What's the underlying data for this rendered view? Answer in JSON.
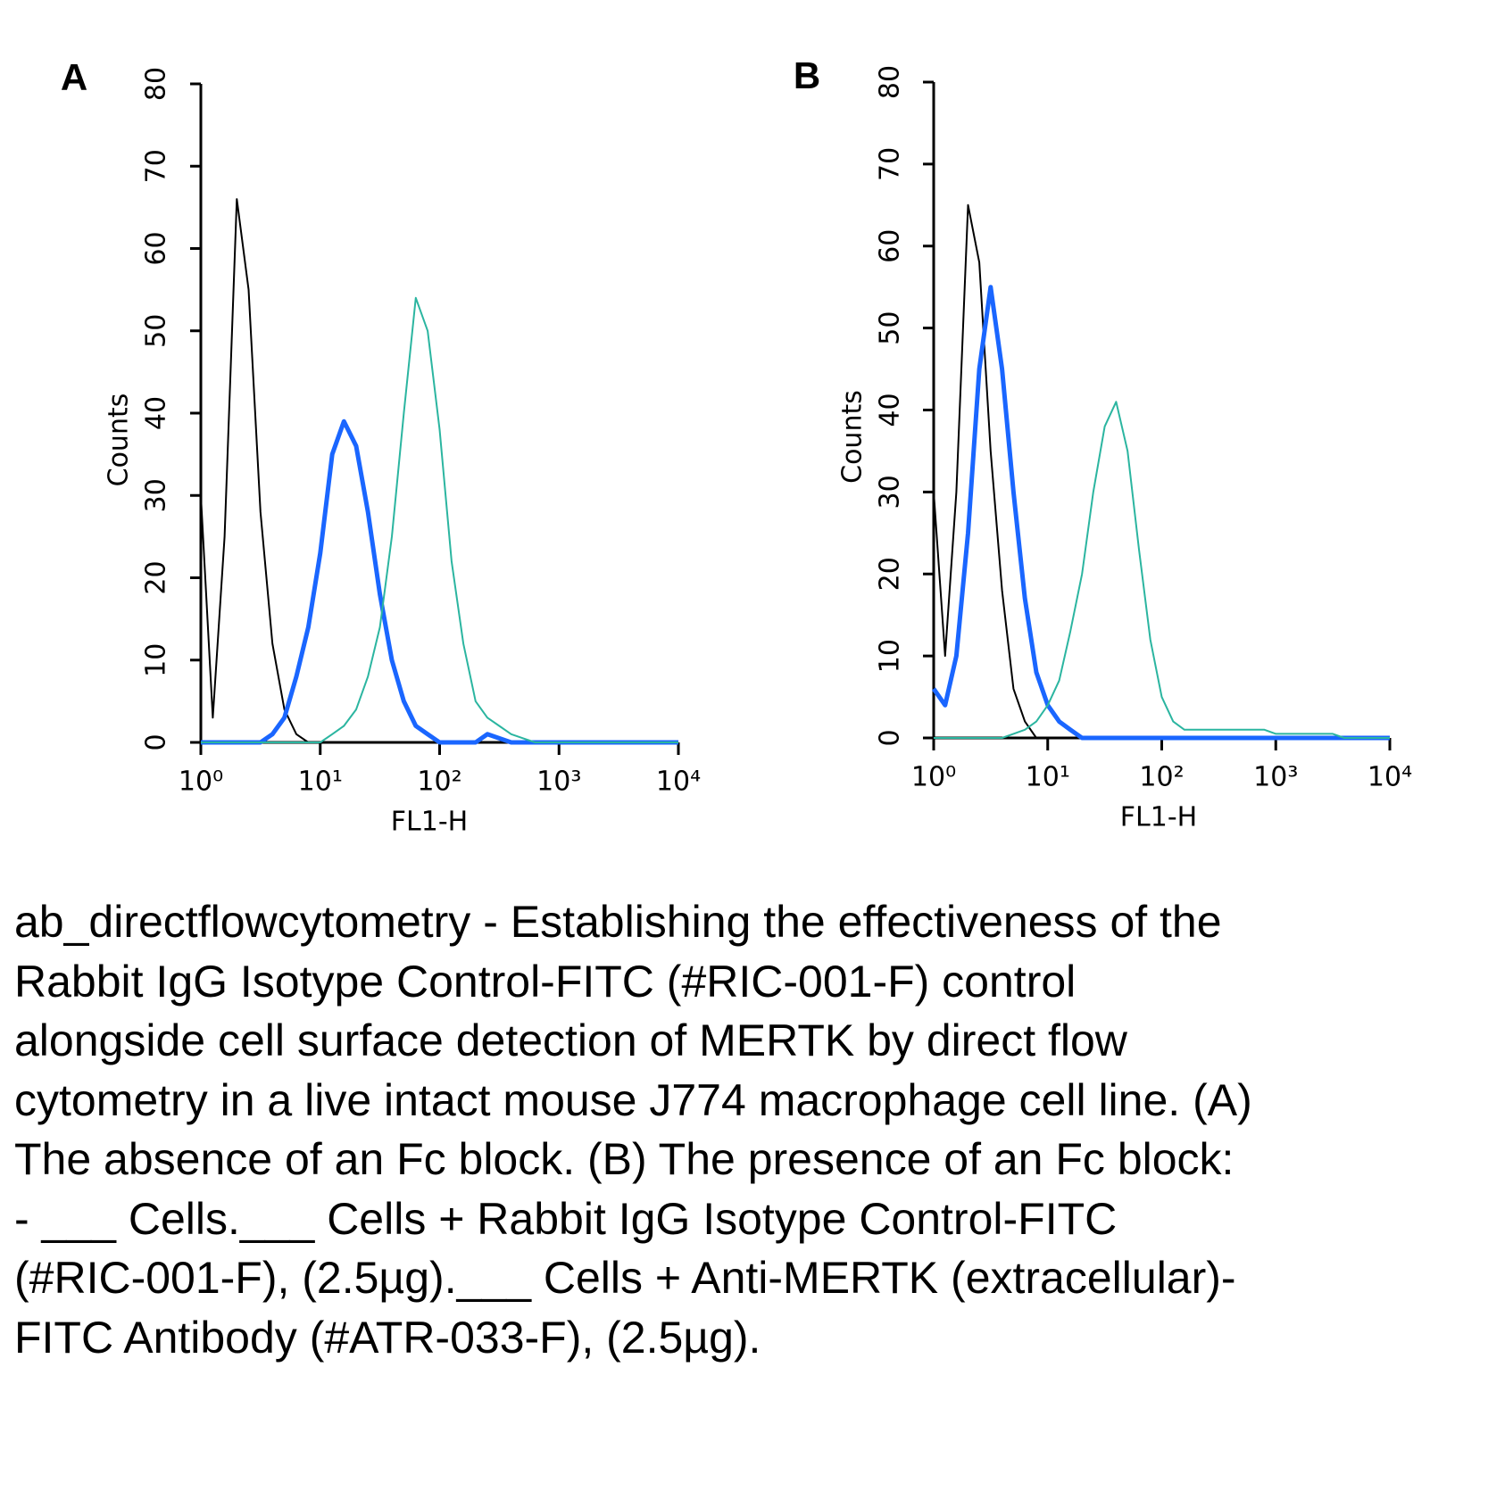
{
  "chart_data": [
    {
      "type": "line",
      "label": "A",
      "xlabel": "FL1-H",
      "ylabel": "Counts",
      "xscale": "log",
      "xlim": [
        1,
        10000
      ],
      "ylim": [
        0,
        80
      ],
      "xticks": [
        {
          "value": 1,
          "label": "10⁰"
        },
        {
          "value": 10,
          "label": "10¹"
        },
        {
          "value": 100,
          "label": "10²"
        },
        {
          "value": 1000,
          "label": "10³"
        },
        {
          "value": 10000,
          "label": "10⁴"
        }
      ],
      "yticks": [
        0,
        10,
        20,
        30,
        40,
        50,
        60,
        70,
        80
      ],
      "x": [
        1,
        1.26,
        1.58,
        2,
        2.51,
        3.16,
        3.98,
        5.01,
        6.31,
        7.94,
        10,
        12.6,
        15.8,
        20,
        25.1,
        31.6,
        39.8,
        50.1,
        63.1,
        79.4,
        100,
        126,
        158,
        200,
        251,
        316,
        398,
        501,
        631,
        794,
        1000,
        1260,
        1580,
        2000,
        2510,
        3160,
        3980,
        5010,
        6310,
        7940,
        10000
      ],
      "series": [
        {
          "color": "#000000",
          "values": [
            30,
            3,
            25,
            66,
            55,
            28,
            12,
            4,
            1,
            0,
            0,
            0,
            0,
            0,
            0,
            0,
            0,
            0,
            0,
            0,
            0,
            0,
            0,
            0,
            0,
            0,
            0,
            0,
            0,
            0,
            0,
            0,
            0,
            0,
            0,
            0,
            0,
            0,
            0,
            0,
            0
          ]
        },
        {
          "color": "#1a66ff",
          "values": [
            0,
            0,
            0,
            0,
            0,
            0,
            1,
            3,
            8,
            14,
            23,
            35,
            39,
            36,
            28,
            18,
            10,
            5,
            2,
            1,
            0,
            0,
            0,
            0,
            1,
            0.5,
            0,
            0,
            0,
            0,
            0,
            0,
            0,
            0,
            0,
            0,
            0,
            0,
            0,
            0,
            0
          ]
        },
        {
          "color": "#2bb5a0",
          "values": [
            0,
            0,
            0,
            0,
            0,
            0,
            0,
            0,
            0,
            0,
            0,
            1,
            2,
            4,
            8,
            14,
            25,
            40,
            54,
            50,
            38,
            22,
            12,
            5,
            3,
            2,
            1,
            0.5,
            0,
            0,
            0,
            0,
            0,
            0,
            0,
            0,
            0,
            0,
            0,
            0,
            0
          ]
        }
      ]
    },
    {
      "type": "line",
      "label": "B",
      "xlabel": "FL1-H",
      "ylabel": "Counts",
      "xscale": "log",
      "xlim": [
        1,
        10000
      ],
      "ylim": [
        0,
        80
      ],
      "xticks": [
        {
          "value": 1,
          "label": "10⁰"
        },
        {
          "value": 10,
          "label": "10¹"
        },
        {
          "value": 100,
          "label": "10²"
        },
        {
          "value": 1000,
          "label": "10³"
        },
        {
          "value": 10000,
          "label": "10⁴"
        }
      ],
      "yticks": [
        0,
        10,
        20,
        30,
        40,
        50,
        60,
        70,
        80
      ],
      "x": [
        1,
        1.26,
        1.58,
        2,
        2.51,
        3.16,
        3.98,
        5.01,
        6.31,
        7.94,
        10,
        12.6,
        15.8,
        20,
        25.1,
        31.6,
        39.8,
        50.1,
        63.1,
        79.4,
        100,
        126,
        158,
        200,
        251,
        316,
        398,
        501,
        631,
        794,
        1000,
        1260,
        1580,
        2000,
        2510,
        3160,
        3980,
        5010,
        6310,
        7940,
        10000
      ],
      "series": [
        {
          "color": "#000000",
          "values": [
            30,
            10,
            30,
            65,
            58,
            35,
            18,
            6,
            2,
            0,
            0,
            0,
            0,
            0,
            0,
            0,
            0,
            0,
            0,
            0,
            0,
            0,
            0,
            0,
            0,
            0,
            0,
            0,
            0,
            0,
            0,
            0,
            0,
            0,
            0,
            0,
            0,
            0,
            0,
            0,
            0
          ]
        },
        {
          "color": "#1a66ff",
          "values": [
            6,
            4,
            10,
            25,
            45,
            55,
            45,
            30,
            17,
            8,
            4,
            2,
            1,
            0,
            0,
            0,
            0,
            0,
            0,
            0,
            0,
            0,
            0,
            0,
            0,
            0,
            0,
            0,
            0,
            0,
            0,
            0,
            0,
            0,
            0,
            0,
            0,
            0,
            0,
            0,
            0
          ]
        },
        {
          "color": "#2bb5a0",
          "values": [
            0,
            0,
            0,
            0,
            0,
            0,
            0,
            0.5,
            1,
            2,
            4,
            7,
            13,
            20,
            30,
            38,
            41,
            35,
            23,
            12,
            5,
            2,
            1,
            1,
            1,
            1,
            1,
            1,
            1,
            1,
            0.5,
            0.5,
            0.5,
            0.5,
            0.5,
            0.5,
            0,
            0,
            0,
            0,
            0
          ]
        }
      ]
    }
  ],
  "caption": "ab_directflowcytometry - Establishing the effectiveness of the Rabbit IgG Isotype Control-FITC (#RIC-001-F) control alongside cell surface detection of MERTK by direct flow cytometry in a live intact mouse J774 macrophage cell line. (A) The absence of an Fc block. (B) The presence of an Fc block: - ___ Cells.___ Cells + Rabbit IgG Isotype Control-FITC (#RIC-001-F), (2.5µg).___ Cells + Anti-MERTK (extracellular)-FITC Antibody (#ATR-033-F), (2.5µg)."
}
